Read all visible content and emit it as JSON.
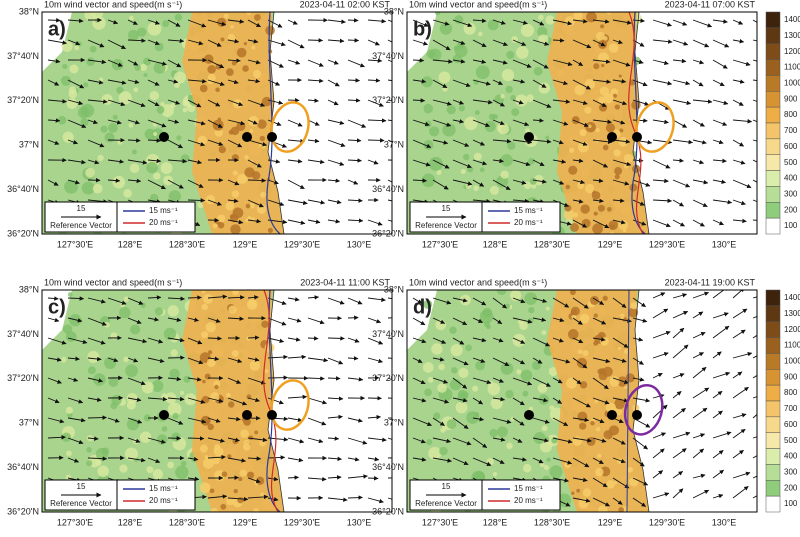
{
  "figure": {
    "panels": [
      {
        "label": "a)",
        "title": "10m wind vector and speed(m s⁻¹)",
        "time": "2023-04-11 02:00 KST"
      },
      {
        "label": "b)",
        "title": "10m wind vector and speed(m s⁻¹)",
        "time": "2023-04-11 07:00 KST"
      },
      {
        "label": "c)",
        "title": "10m wind vector and speed(m s⁻¹)",
        "time": "2023-04-11 11:00 KST"
      },
      {
        "label": "d)",
        "title": "10m wind vector and speed(m s⁻¹)",
        "time": "2023-04-11 19:00 KST"
      }
    ],
    "lat_ticks": [
      "38°N",
      "37°40'N",
      "37°20'N",
      "37°N",
      "36°40'N",
      "36°20'N"
    ],
    "lon_ticks": [
      "127°30'E",
      "128°E",
      "128°30'E",
      "129°E",
      "129°30'E",
      "130°E"
    ],
    "legend": {
      "ref_value": 15,
      "ref_label": "Reference Vector",
      "contours": [
        "15 ms⁻¹",
        "20 ms⁻¹"
      ]
    },
    "colorbar": [
      1400,
      1300,
      1200,
      1100,
      1000,
      900,
      800,
      700,
      600,
      500,
      400,
      300,
      200,
      100
    ]
  }
}
